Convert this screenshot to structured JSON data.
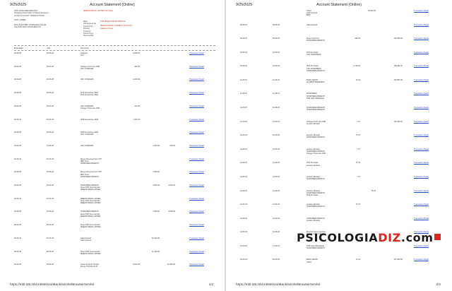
{
  "header": {
    "date": "9/25/2025",
    "title": "Account Statement (Online)"
  },
  "footer": {
    "url": "https://mbl-t25.mbl.int/MeezanBank/servlet/BrowserServlet",
    "page1_num": "1/2",
    "page2_num": "2/2"
  },
  "info": {
    "bank_top": "MEEZAN BANK LIMITED Print Date",
    "left_lines": [
      "ZAIN NOWSHERA BRANCH",
      "Nowshera Road Main GT Road Nowshera",
      "QUICK ACCOUNT TRANSACTIONS",
      "",
      "ZAIN LATEEB",
      "",
      "MOH KHAN BIBI, NOWSHERA SALAR",
      "TEH AND DIST NOWSHERA PK"
    ],
    "mid_lines": [
      "Bank",
      "Old Account No",
      "Account No",
      "Product",
      "Currency",
      "Period From",
      "Opening Bal"
    ],
    "right_lines": [
      "THE MEEZAN BANK BRANCH",
      "",
      "MEEZAN BANK CURRENT ACCOUNT",
      "Pakistan Rupee",
      "",
      ""
    ]
  },
  "columns": [
    "BookedDate",
    "Valid",
    "Description",
    "",
    "",
    "",
    ""
  ],
  "page1_rows": [
    {
      "date": "18-06-25",
      "vdate": "18-06-25",
      "desc": [
        "Chargers",
        "ACT"
      ],
      "dr": "5,000.00",
      "cr": "",
      "bal": "",
      "link": "Transaction Detail"
    },
    {
      "date": "18-06-25",
      "vdate": "18-06-25",
      "desc": [
        "Charges Trans Fee PKR",
        "ADC CHARGES"
      ],
      "dr": "160.00",
      "cr": "",
      "bal": "",
      "link": "Transaction Detail"
    },
    {
      "date": "18-06-25",
      "vdate": "18-06-25",
      "desc": [
        "ADC CHARGES"
      ],
      "dr": "2,000.00",
      "cr": "",
      "bal": "",
      "link": "Transaction Detail"
    },
    {
      "date": "18-06-25",
      "vdate": "18-06-25",
      "desc": [
        "POS Annual Fee 2025",
        "POS Annual Fee 2025"
      ],
      "dr": "",
      "cr": "",
      "bal": "",
      "link": "Transaction Detail"
    },
    {
      "date": "18-06-25",
      "vdate": "18-06-25",
      "desc": [
        "ADC CHARGES",
        "Charges Trans Fee PKR"
      ],
      "dr": "122.00",
      "cr": "",
      "bal": "",
      "link": "Transaction Detail"
    },
    {
      "date": "18-06-25",
      "vdate": "18-06-25",
      "desc": [
        "SMS Annual Fee 2025"
      ],
      "dr": "1,000.00",
      "cr": "",
      "bal": "",
      "link": "Transaction Detail"
    },
    {
      "date": "18-06-25",
      "vdate": "18-06-25",
      "desc": [
        "SMS Annual Fee 2025",
        "ADC CHARGES"
      ],
      "dr": "",
      "cr": "",
      "bal": "",
      "link": "Transaction Detail"
    },
    {
      "date": "19-06-25",
      "vdate": "19-06-25",
      "desc": [
        "ADC CHARGES"
      ],
      "dr": "",
      "cr": "1,000.00",
      "bal": "515.00",
      "link": "Transaction Detail"
    },
    {
      "date": "19-06-25",
      "vdate": "19-06-25",
      "desc": [
        "Money Received from UTP",
        "IBFT From",
        "NOWSHERA BRANCH"
      ],
      "dr": "",
      "cr": "",
      "bal": "",
      "link": "Transaction Detail"
    },
    {
      "date": "20-06-25",
      "vdate": "20-06-25",
      "desc": [
        "Money Received from UTP",
        "IBFT From",
        "NOWSHERA BRANCH"
      ],
      "dr": "",
      "cr": "1,000.00",
      "bal": "",
      "link": "Transaction Detail"
    },
    {
      "date": "22-06-25",
      "vdate": "22-06-25",
      "desc": [
        "NOWSHERA BRANCH",
        "Super P2P Fund transfer",
        "MEEZAN BANK LIMITED"
      ],
      "dr": "",
      "cr": "3,000.00",
      "bal": "2,515.00",
      "link": "Transaction Detail"
    },
    {
      "date": "23-06-25",
      "vdate": "23-06-25",
      "desc": [
        "MEEZAN BANK LIMITED",
        "Super P2P Fund transfer",
        "MEEZAN BANK LIMITED"
      ],
      "dr": "",
      "cr": "",
      "bal": "",
      "link": "Transaction Detail"
    },
    {
      "date": "24-06-25",
      "vdate": "24-06-25",
      "desc": [
        "NOWSHERA BRANCH",
        "Super P2P Fund transfer",
        "MEEZAN BANK LIMITED"
      ],
      "dr": "",
      "cr": "1,000.00",
      "bal": "4,515.00",
      "link": "Transaction Detail"
    },
    {
      "date": "25-06-25",
      "vdate": "25-06-25",
      "desc": [
        "Super P2P Fund transfer",
        "MEEZAN BANK LIMITED"
      ],
      "dr": "",
      "cr": "",
      "bal": "",
      "link": "Transaction Detail"
    },
    {
      "date": "26-06-25",
      "vdate": "26-06-25",
      "desc": [
        "Cash Deposit",
        "Cash Deposit"
      ],
      "dr": "",
      "cr": "30,000.00",
      "bal": "",
      "link": "Transaction Detail"
    },
    {
      "date": "28-06-25",
      "vdate": "28-06-25",
      "desc": [
        "Super P2P Fund transfer",
        "MEEZAN BANK LIMITED"
      ],
      "dr": "",
      "cr": "11,145.00",
      "bal": "",
      "link": "Transaction Detail"
    },
    {
      "date": "30-06-25",
      "vdate": "30-06-25",
      "desc": [
        "Account Funds Transfer",
        "Money Transferred To"
      ],
      "dr": "6,000.00",
      "cr": "",
      "bal": "41,560.00",
      "link": "Transaction Detail"
    }
  ],
  "page2_rows": [
    {
      "date": "",
      "vdate": "",
      "desc": [
        "STAN",
        "Cash Deposit",
        "BAHI"
      ],
      "dr": "",
      "cr": "18,000.00",
      "bal": "",
      "link": "Transaction Detail"
    },
    {
      "date": "06-08-15",
      "vdate": "06-08-15",
      "desc": [
        "Cash Deposit"
      ],
      "dr": "",
      "cr": "",
      "bal": "",
      "link": "Transaction Detail"
    },
    {
      "date": "09-08-15",
      "vdate": "09-08-15",
      "desc": [
        "Super Card Fee",
        "NOWSHERA BRANCH"
      ],
      "dr": "299.00",
      "cr": "",
      "bal": "136,980.00",
      "link": "Transaction Detail"
    },
    {
      "date": "10-08-15",
      "vdate": "10-08-15",
      "desc": [
        "POS Purchase",
        "CSC NOWSHERA"
      ],
      "dr": "",
      "cr": "",
      "bal": "",
      "link": "Transaction Detail"
    },
    {
      "date": "10-08-15",
      "vdate": "10-08-15",
      "desc": [
        "POS Purchase",
        "CSC NOWSHERA",
        "NOWSHERA BRANCH"
      ],
      "dr": "2,795.00",
      "cr": "",
      "bal": "136,681.00",
      "link": "Transaction Detail"
    },
    {
      "date": "11-08-15",
      "vdate": "11-08-15",
      "desc": [
        "BANK GRANT",
        "AC WRATTARDENMO"
      ],
      "dr": "13.44",
      "cr": "",
      "bal": "133,887.00",
      "link": "Transaction Detail"
    },
    {
      "date": "11-08-15",
      "vdate": "11-08-15",
      "desc": [
        "NOWSHERA",
        "NOWSHERA BRANCH",
        "ATM Cash Withdrawal"
      ],
      "dr": "",
      "cr": "",
      "bal": "",
      "link": "Transaction Detail"
    },
    {
      "date": "11-08-15",
      "vdate": "11-08-15",
      "desc": [
        "NOWSHERA BRANCH",
        "NOWSHERA BRANCH"
      ],
      "dr": "",
      "cr": "",
      "bal": "",
      "link": "Transaction Detail"
    },
    {
      "date": "12-08-15",
      "vdate": "12-08-15",
      "desc": [
        "Charges Trans Fee PKR",
        "amazon AE latter"
      ],
      "dr": "7.27",
      "cr": "",
      "bal": "118,580.94",
      "link": "Transaction Detail"
    },
    {
      "date": "12-08-15",
      "vdate": "12-08-15",
      "desc": [
        "amazon AE latter",
        "NOWSHERA BRANCH"
      ],
      "dr": "75.76",
      "cr": "",
      "bal": "",
      "link": "Transaction Detail"
    },
    {
      "date": "12-08-15",
      "vdate": "12-08-15",
      "desc": [
        "amazon AE latter",
        "NOWSHERA BRANCH",
        "Charges Trans Fee PKR"
      ],
      "dr": "7.27",
      "cr": "",
      "bal": "",
      "link": "Transaction Detail"
    },
    {
      "date": "12-08-15",
      "vdate": "12-08-15",
      "desc": [
        "POS Purchase",
        "amazon AE latter"
      ],
      "dr": "75.76",
      "cr": "",
      "bal": "",
      "link": "Transaction Detail"
    },
    {
      "date": "12-08-15",
      "vdate": "12-08-15",
      "desc": [
        "amazon AE latter",
        "NOWSHERA BRANCH"
      ],
      "dr": "7.27",
      "cr": "",
      "bal": "",
      "link": "Transaction Detail"
    },
    {
      "date": "12-08-15",
      "vdate": "12-08-15",
      "desc": [
        "amazon AE latter",
        "NOWSHERA BRANCH",
        "POS Purchase"
      ],
      "dr": "",
      "cr": "75.76",
      "bal": "",
      "link": "Transaction Detail"
    },
    {
      "date": "12-08-15",
      "vdate": "12-08-15",
      "desc": [
        "amazon AE latter",
        "NOWSHERA BRANCH"
      ],
      "dr": "75.76",
      "cr": "",
      "bal": "",
      "link": "Transaction Detail"
    },
    {
      "date": "12-08-15",
      "vdate": "12-08-15",
      "desc": [
        "NOWSHERA BRANCH",
        "amazon AE latter"
      ],
      "dr": "",
      "cr": "",
      "bal": "",
      "link": "Transaction Detail"
    },
    {
      "date": "13-08-15",
      "vdate": "13-08-15",
      "desc": [
        "Meezan Super Card Fee",
        "Meezan Super Card Fee"
      ],
      "dr": "",
      "cr": "",
      "bal": "",
      "link": "Transaction Detail"
    },
    {
      "date": "14-08-15",
      "vdate": "14-08-15",
      "desc": [
        "ATM Cash Withdrawal",
        "NOWSHERA BRANCH"
      ],
      "dr": "",
      "cr": "",
      "bal": "",
      "link": "Transaction Detail"
    },
    {
      "date": "16-08-15",
      "vdate": "16-08-15",
      "desc": [
        "BANK GRANT",
        "STAN"
      ],
      "dr": "13.44",
      "cr": "",
      "bal": "117,864.50",
      "link": "Transaction Detail"
    }
  ],
  "watermark": {
    "part1": "PSICOLOGIA",
    "part2": "DIZ",
    "part3": ".com"
  }
}
